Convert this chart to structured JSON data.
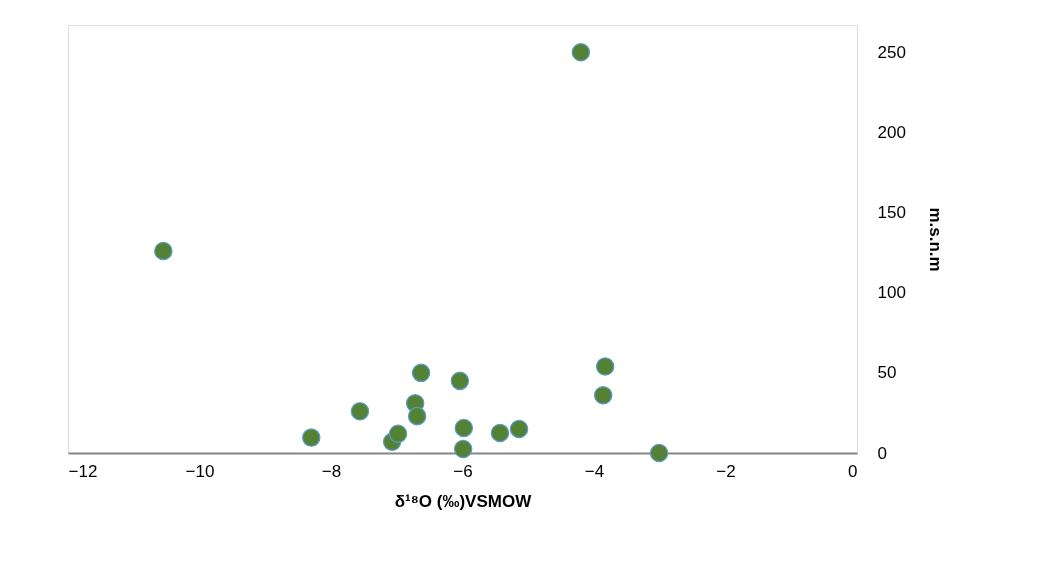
{
  "chart_data": {
    "type": "scatter",
    "xlabel": "δ¹⁸O  (‰)VSMOW",
    "ylabel": "m.s.n.m",
    "x": [
      -10.55,
      -8.3,
      -7.56,
      -7.07,
      -6.98,
      -6.72,
      -6.69,
      -6.63,
      -6.04,
      -5.99,
      -5.98,
      -5.43,
      -5.14,
      -4.2,
      -3.86,
      -3.83,
      -3.01
    ],
    "series": [
      {
        "color": "#548235",
        "values": [
          126,
          9.6,
          26,
          7,
          12,
          31,
          23,
          50,
          45,
          2.5,
          15.6,
          12.5,
          15,
          250,
          36,
          54,
          0
        ]
      }
    ],
    "xlim": [
      -12,
      0
    ],
    "xticks": [
      -12,
      -10,
      -8,
      -6,
      -4,
      -2,
      0
    ],
    "ylim": [
      0,
      267
    ],
    "yticks": [
      0,
      50,
      100,
      150,
      200,
      250
    ],
    "grid": false,
    "legend": false
  }
}
